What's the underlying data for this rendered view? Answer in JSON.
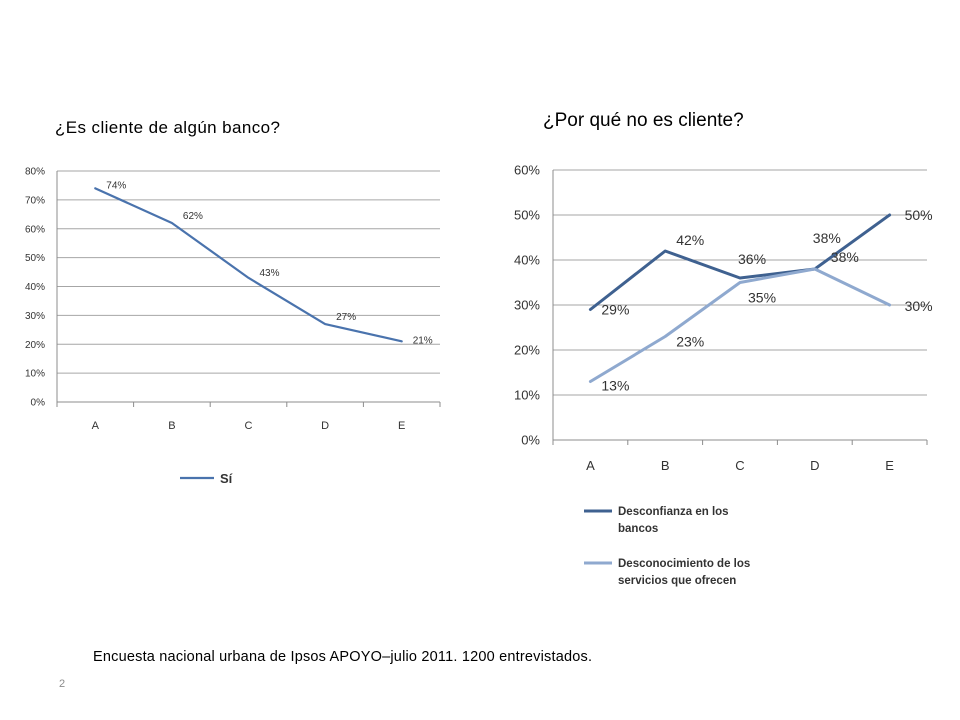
{
  "slide": {
    "footnote": "Encuesta nacional urbana de Ipsos APOYO–julio 2011. 1200 entrevistados.",
    "page_number": "2"
  },
  "chart_data": [
    {
      "type": "line",
      "title": "¿Es cliente de algún banco?",
      "categories": [
        "A",
        "B",
        "C",
        "D",
        "E"
      ],
      "ylim": [
        0,
        80
      ],
      "yticks": [
        "0%",
        "10%",
        "20%",
        "30%",
        "40%",
        "50%",
        "60%",
        "70%",
        "80%"
      ],
      "grid": true,
      "legend_position": "bottom",
      "series": [
        {
          "name": "Sí",
          "color": "#4a73ad",
          "values": [
            74,
            62,
            43,
            27,
            21
          ],
          "labels": [
            "74%",
            "62%",
            "43%",
            "27%",
            "21%"
          ]
        }
      ]
    },
    {
      "type": "line",
      "title": "¿Por qué no es cliente?",
      "categories": [
        "A",
        "B",
        "C",
        "D",
        "E"
      ],
      "ylim": [
        0,
        60
      ],
      "yticks": [
        "0%",
        "10%",
        "20%",
        "30%",
        "40%",
        "50%",
        "60%"
      ],
      "grid": true,
      "legend_position": "bottom",
      "series": [
        {
          "name": "Desconfianza en los bancos",
          "name_lines": [
            "Desconfianza en los",
            "bancos"
          ],
          "color": "#3f6190",
          "values": [
            29,
            42,
            36,
            38,
            50
          ],
          "labels": [
            "29%",
            "42%",
            "36%",
            "38%",
            "50%"
          ]
        },
        {
          "name": "Desconocimiento de los servicios que ofrecen",
          "name_lines": [
            "Desconocimiento de los",
            "servicios que ofrecen"
          ],
          "color": "#8fa9cf",
          "values": [
            13,
            23,
            35,
            38,
            30
          ],
          "labels": [
            "13%",
            "23%",
            "35%",
            "38%",
            "30%"
          ]
        }
      ]
    }
  ]
}
